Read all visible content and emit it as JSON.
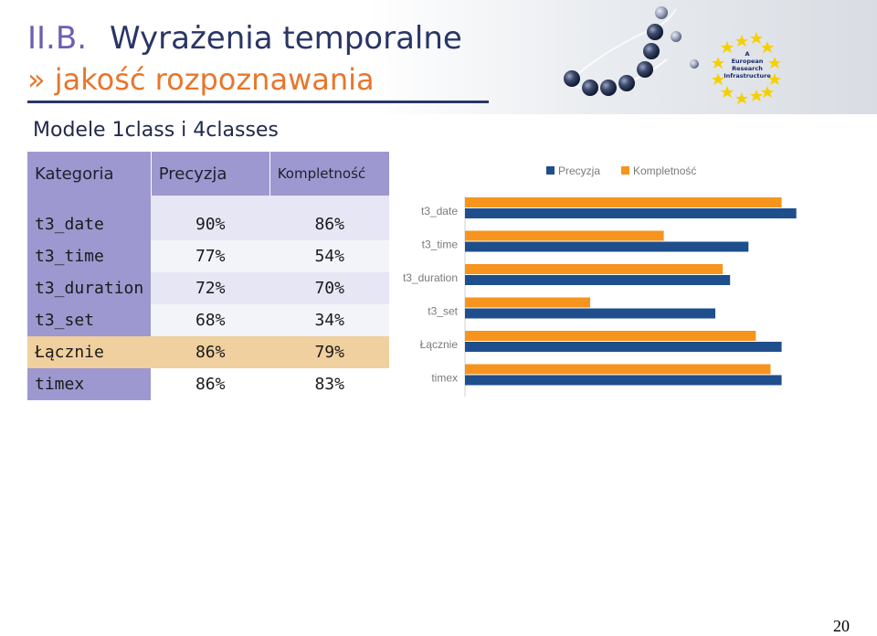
{
  "slide": {
    "title_prefix": "II.B.",
    "title_main": "Wyrażenia temporalne",
    "subtitle": "» jakość rozpoznawania",
    "section_heading": "Modele 1class i 4classes",
    "page_number": "20",
    "logo_text": [
      "A",
      "European",
      "Research",
      "Infrastructure"
    ]
  },
  "table": {
    "headers": [
      "Kategoria",
      "Precyzja",
      "Kompletność"
    ],
    "rows": [
      {
        "category": "t3_date",
        "precision": "90%",
        "recall": "86%"
      },
      {
        "category": "t3_time",
        "precision": "77%",
        "recall": "54%"
      },
      {
        "category": "t3_duration",
        "precision": "72%",
        "recall": "70%"
      },
      {
        "category": "t3_set",
        "precision": "68%",
        "recall": "34%"
      },
      {
        "category": "Łącznie",
        "precision": "86%",
        "recall": "79%"
      },
      {
        "category": "timex",
        "precision": "86%",
        "recall": "83%"
      }
    ]
  },
  "colors": {
    "precision": "#1f4e8c",
    "recall": "#f7941d",
    "table_header": "#9d98cf",
    "total_row": "#f0d09e",
    "title_blue": "#2a3566",
    "accent_orange": "#e8762b"
  },
  "chart_data": {
    "type": "bar",
    "orientation": "horizontal",
    "categories": [
      "t3_date",
      "t3_time",
      "t3_duration",
      "t3_set",
      "Łącznie",
      "timex"
    ],
    "series": [
      {
        "name": "Precyzja",
        "values": [
          90,
          77,
          72,
          68,
          86,
          86
        ]
      },
      {
        "name": "Kompletność",
        "values": [
          86,
          54,
          70,
          34,
          79,
          83
        ]
      }
    ],
    "xlim": [
      0,
      100
    ],
    "xticks": [
      "0",
      "10",
      "20",
      "30",
      "40",
      "50",
      "60",
      "70",
      "80",
      "90",
      "100"
    ],
    "legend_position": "top-right",
    "grid": false
  }
}
